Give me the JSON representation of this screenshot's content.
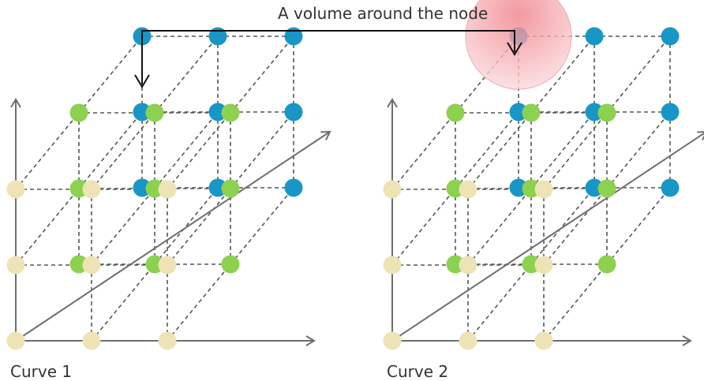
{
  "annotation": {
    "text": "A volume around the node"
  },
  "diagrams": [
    {
      "caption": "Curve 1",
      "highlight_volume": false
    },
    {
      "caption": "Curve 2",
      "highlight_volume": true
    }
  ],
  "grid": {
    "columns": 3,
    "rows": 3,
    "layers": 3
  },
  "colors": {
    "front_nodes": "#ede3b5",
    "middle_nodes": "#8cd150",
    "back_nodes": "#1897c6",
    "volume": "#ee8a92",
    "lines": "#555555",
    "axes": "#6e6e6e"
  }
}
